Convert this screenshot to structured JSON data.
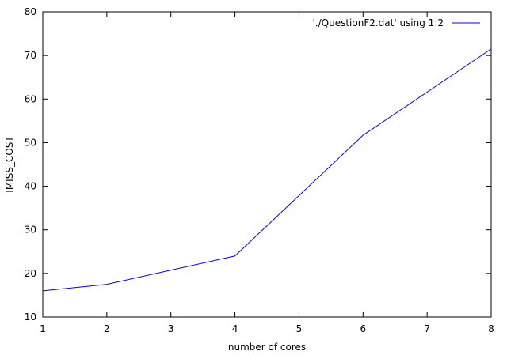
{
  "chart_data": {
    "type": "line",
    "xlabel": "number of cores",
    "ylabel": "IMISS_COST",
    "xlim": [
      1,
      8
    ],
    "ylim": [
      10,
      80
    ],
    "xticks": [
      "1",
      "2",
      "3",
      "4",
      "5",
      "6",
      "7",
      "8"
    ],
    "yticks": [
      "10",
      "20",
      "30",
      "40",
      "50",
      "60",
      "70",
      "80"
    ],
    "grid": false,
    "legend_position": "top-right",
    "series": [
      {
        "name": "'./QuestionF2.dat' using 1:2",
        "color": "#0000ff",
        "x": [
          1,
          2,
          4,
          6,
          8
        ],
        "y": [
          16,
          17.5,
          24,
          51.7,
          71.5
        ]
      }
    ]
  }
}
